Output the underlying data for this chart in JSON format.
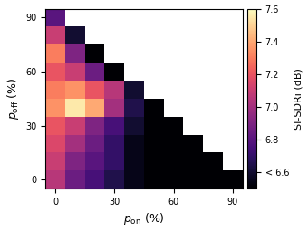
{
  "xlabel": "$p_{\\mathrm{on}}$ (%)",
  "ylabel": "$p_{\\mathrm{off}}$ (%)",
  "colorbar_label": "SI-SDRi (dB)",
  "vmin": 6.5,
  "vmax": 7.6,
  "p_values": [
    0,
    10,
    20,
    30,
    40,
    50,
    60,
    70,
    80,
    90
  ],
  "data": {
    "comment": "rows=p_off index (0=0%..9=90%), cols=p_on index (0=0%..9=90%), null where p_on+p_off>100",
    "values": [
      [
        7.05,
        6.85,
        6.75,
        6.65,
        6.55,
        6.45,
        6.35,
        6.25,
        6.15,
        6.05
      ],
      [
        7.1,
        6.9,
        6.8,
        6.7,
        6.55,
        6.45,
        6.35,
        6.25,
        6.15,
        null
      ],
      [
        7.15,
        7.0,
        6.85,
        6.7,
        6.55,
        6.45,
        6.35,
        6.25,
        null,
        null
      ],
      [
        7.2,
        7.1,
        6.9,
        6.75,
        6.6,
        6.45,
        6.35,
        null,
        null,
        null
      ],
      [
        7.35,
        7.55,
        7.4,
        7.0,
        6.65,
        6.45,
        null,
        null,
        null,
        null
      ],
      [
        7.3,
        7.35,
        7.2,
        7.05,
        6.6,
        null,
        null,
        null,
        null,
        null
      ],
      [
        7.2,
        7.1,
        6.85,
        6.5,
        null,
        null,
        null,
        null,
        null,
        null
      ],
      [
        7.3,
        6.9,
        6.5,
        null,
        null,
        null,
        null,
        null,
        null,
        null
      ],
      [
        7.1,
        6.6,
        null,
        null,
        null,
        null,
        null,
        null,
        null,
        null
      ],
      [
        6.8,
        null,
        null,
        null,
        null,
        null,
        null,
        null,
        null,
        null
      ]
    ]
  }
}
